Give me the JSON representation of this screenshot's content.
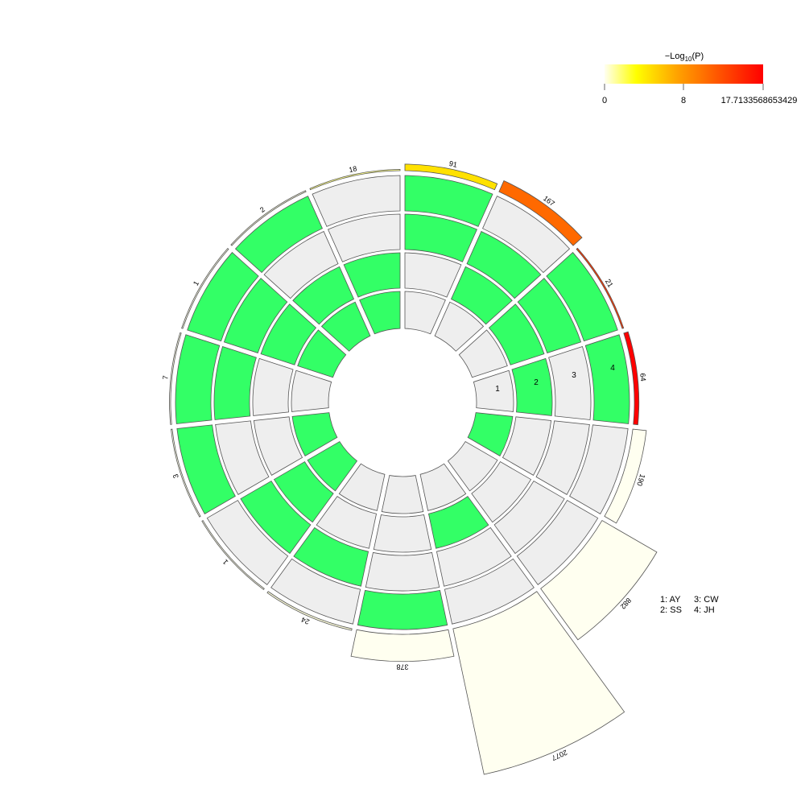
{
  "chart_data": {
    "type": "circular-upset",
    "sets": [
      "AY",
      "SS",
      "CW",
      "JH"
    ],
    "legend": [
      {
        "index": "1",
        "name": "AY"
      },
      {
        "index": "2",
        "name": "SS"
      },
      {
        "index": "3",
        "name": "CW"
      },
      {
        "index": "4",
        "name": "JH"
      }
    ],
    "colorbar": {
      "title_prefix": "−Log",
      "title_sub": "10",
      "title_suffix": "(P)",
      "ticks": [
        "0",
        "8",
        "17.7133568653429"
      ],
      "min": 0,
      "max": 17.7133568653429,
      "colors": [
        "#FFFFF0",
        "#FFFF00",
        "#FFA500",
        "#FF0000"
      ]
    },
    "membership_colors": {
      "present": "#33FF66",
      "absent": "#EEEEEE"
    },
    "intersections": [
      {
        "members": [
          false,
          true,
          false,
          true
        ],
        "size": 64,
        "log_p": 17.71
      },
      {
        "members": [
          false,
          true,
          true,
          true
        ],
        "size": 21,
        "log_p": 14.5
      },
      {
        "members": [
          false,
          true,
          true,
          false
        ],
        "size": 167,
        "log_p": 11.5
      },
      {
        "members": [
          false,
          false,
          true,
          true
        ],
        "size": 91,
        "log_p": 5.0
      },
      {
        "members": [
          true,
          true,
          false,
          false
        ],
        "size": 18,
        "log_p": 1.5
      },
      {
        "members": [
          true,
          true,
          false,
          true
        ],
        "size": 2,
        "log_p": 0.2
      },
      {
        "members": [
          true,
          true,
          true,
          true
        ],
        "size": 1,
        "log_p": 0.1
      },
      {
        "members": [
          false,
          false,
          true,
          true
        ],
        "size": 7,
        "log_p": 0.1
      },
      {
        "members": [
          true,
          false,
          false,
          true
        ],
        "size": 3,
        "log_p": 0.1
      },
      {
        "members": [
          true,
          true,
          true,
          false
        ],
        "size": 1,
        "log_p": 0.1
      },
      {
        "members": [
          false,
          false,
          true,
          false
        ],
        "size": 24,
        "log_p": 0.3
      },
      {
        "members": [
          false,
          false,
          false,
          true
        ],
        "size": 378,
        "log_p": 0
      },
      {
        "members": [
          false,
          true,
          false,
          false
        ],
        "size": 2077,
        "log_p": 0
      },
      {
        "members": [
          false,
          false,
          false,
          false
        ],
        "size": 882,
        "log_p": 0
      },
      {
        "members": [
          true,
          false,
          false,
          false
        ],
        "size": 190,
        "log_p": 0
      }
    ],
    "size_labels": [
      "64",
      "21",
      "167",
      "91",
      "18",
      "2",
      "1",
      "7",
      "3",
      "1",
      "24",
      "378",
      "2077",
      "882",
      "190"
    ]
  }
}
